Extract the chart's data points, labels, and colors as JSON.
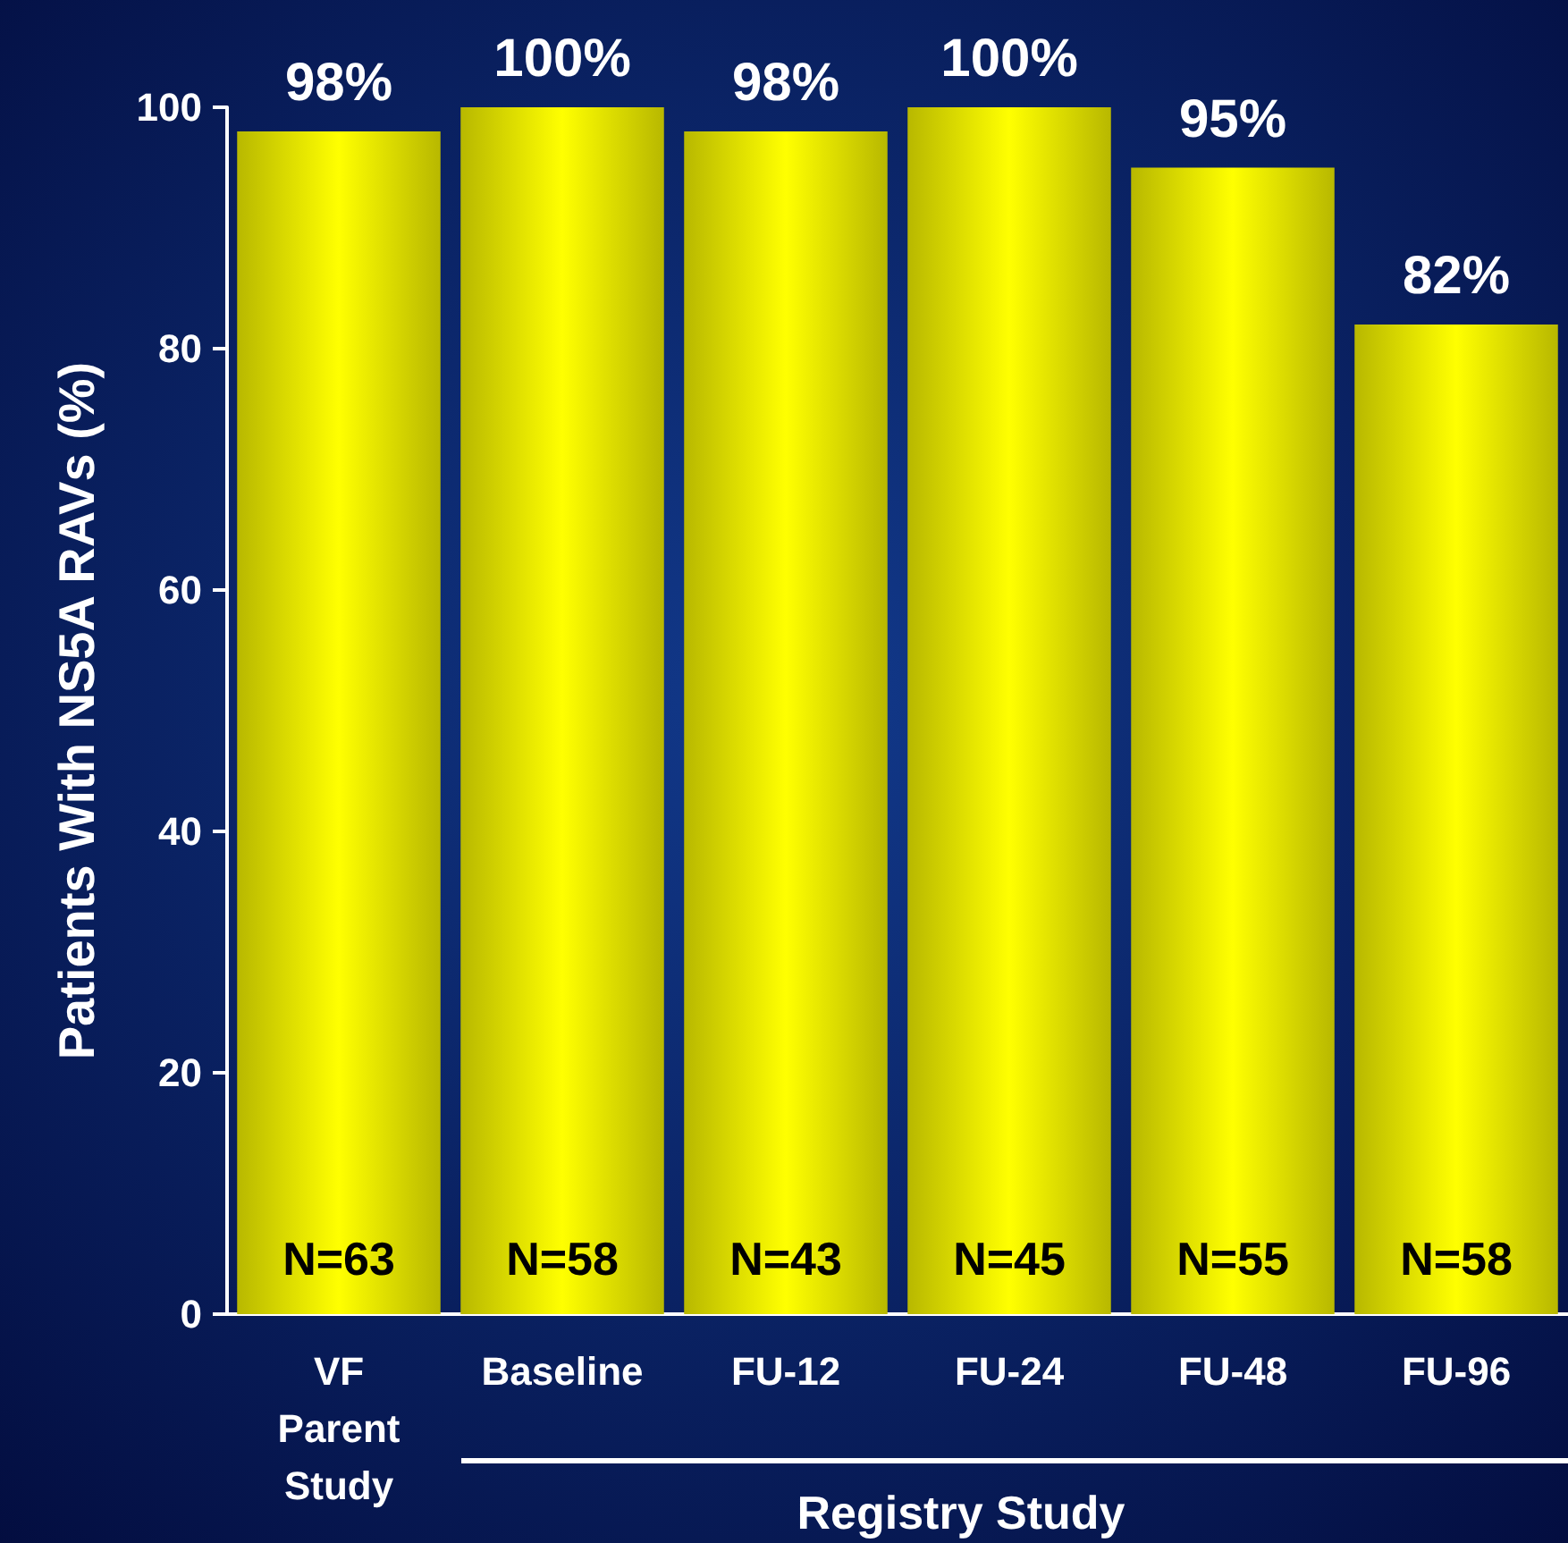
{
  "chart_data": {
    "type": "bar",
    "ylabel": "Patients With NS5A RAVs (%)",
    "categories": [
      "VF\nParent\nStudy",
      "Baseline",
      "FU-12",
      "FU-24",
      "FU-48",
      "FU-96"
    ],
    "values": [
      98,
      100,
      98,
      100,
      95,
      82
    ],
    "value_labels": [
      "98%",
      "100%",
      "98%",
      "100%",
      "95%",
      "82%"
    ],
    "color": "#ffff00",
    "ylim": [
      0,
      100
    ],
    "yticks": [
      0,
      20,
      40,
      60,
      80,
      100
    ],
    "grid": false,
    "annotations": [
      "N=63",
      "N=58",
      "N=43",
      "N=45",
      "N=55",
      "N=58",
      "Registry Study"
    ]
  }
}
